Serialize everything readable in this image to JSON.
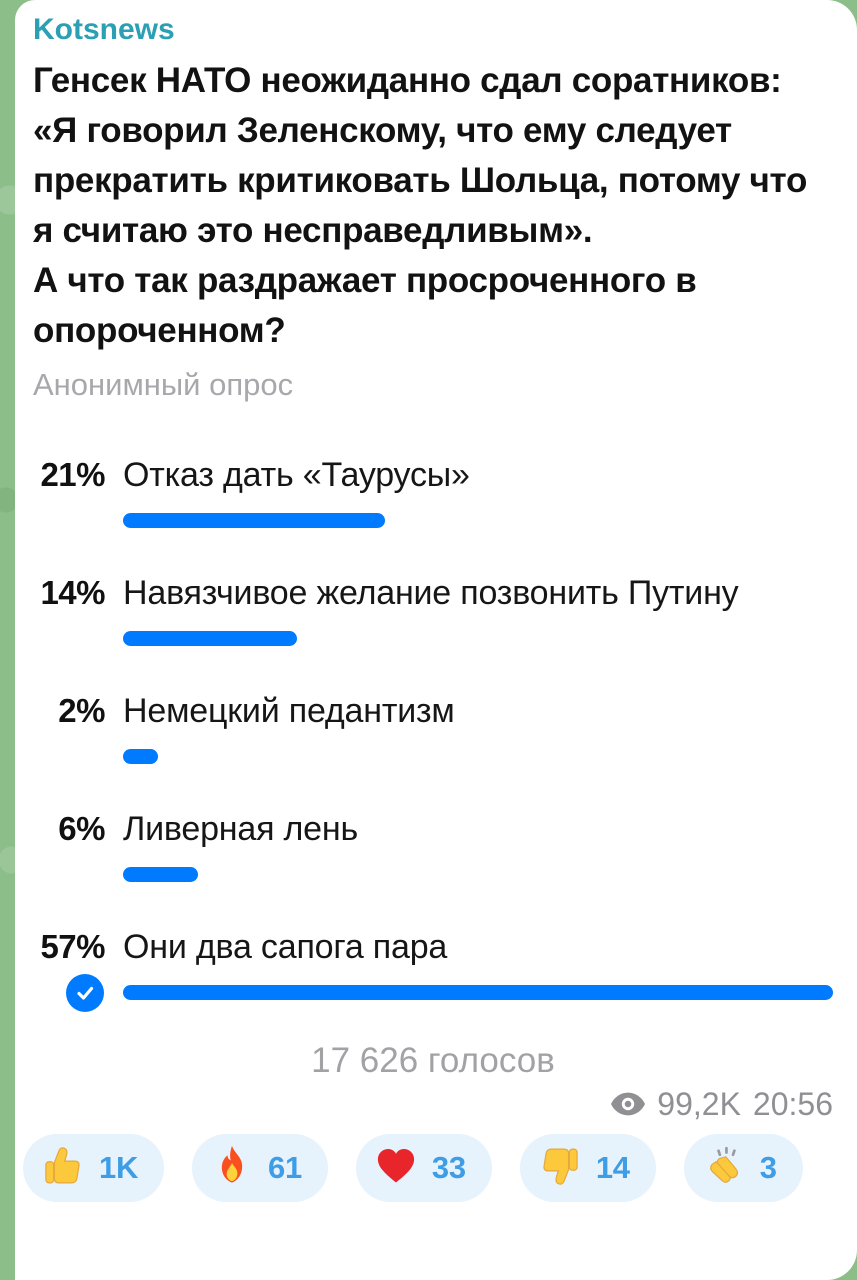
{
  "channel": {
    "name": "Kotsnews"
  },
  "post": {
    "question": "Генсек НАТО неожиданно сдал соратников: «Я говорил Зеленскому, что ему следует прекратить критиковать Шольца, потому что я считаю это несправедливым».\nА что так раздражает просроченного в опороченном?",
    "poll_type": "Анонимный опрос",
    "options": [
      {
        "percent": "21%",
        "value": 21,
        "label": "Отказ дать «Таурусы»",
        "chosen": false
      },
      {
        "percent": "14%",
        "value": 14,
        "label": "Навязчивое желание позвонить Путину",
        "chosen": false
      },
      {
        "percent": "2%",
        "value": 2,
        "label": "Немецкий педантизм",
        "chosen": false
      },
      {
        "percent": "6%",
        "value": 6,
        "label": "Ливерная лень",
        "chosen": false
      },
      {
        "percent": "57%",
        "value": 57,
        "label": "Они два сапога пара",
        "chosen": true
      }
    ],
    "votes": "17 626 голосов",
    "views": "99,2K",
    "time": "20:56"
  },
  "reactions": [
    {
      "icon": "thumbs-up-emoji",
      "count": "1K"
    },
    {
      "icon": "fire-emoji",
      "count": "61"
    },
    {
      "icon": "heart-emoji",
      "count": "33"
    },
    {
      "icon": "thumbs-down-emoji",
      "count": "14"
    },
    {
      "icon": "clap-emoji",
      "count": "3"
    }
  ],
  "colors": {
    "channel_name": "#2b9fb3",
    "poll_bar_blue": "#007aff",
    "reaction_count_blue": "#3e9de5",
    "reaction_pill_bg": "#e6f2fc",
    "muted_text_gray": "#a2a2a6",
    "wallpaper_green": "#8cbe8a"
  }
}
